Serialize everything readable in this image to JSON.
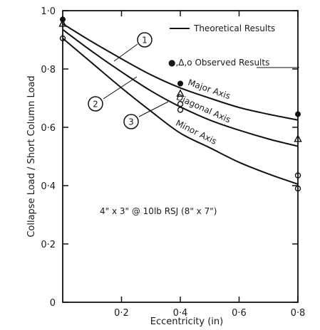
{
  "chart_data": {
    "type": "line",
    "xlabel": "Eccentricity (in)",
    "ylabel": "Collapse Load / Short Column Load",
    "xlim": [
      0,
      0.8
    ],
    "ylim": [
      0,
      1.0
    ],
    "x_ticks": [
      "0·2",
      "0·4",
      "0·6",
      "0·8"
    ],
    "y_ticks": [
      "0",
      "0·2",
      "0·4",
      "0·6",
      "0·8",
      "1·0"
    ],
    "x_tick_values": [
      0.2,
      0.4,
      0.6,
      0.8
    ],
    "y_tick_values": [
      0,
      0.2,
      0.4,
      0.6,
      0.8,
      1.0
    ],
    "grid": false,
    "legend_position": "top-right",
    "legend": {
      "line_label": "Theoretical Results",
      "markers_label": "●,Δ,o Observed Results"
    },
    "annotation": "4\" x 3\" @ 10lb RSJ (8\" x 7\")",
    "series": [
      {
        "name": "Major Axis",
        "callout": "1",
        "theoretical": {
          "x": [
            0,
            0.1,
            0.2,
            0.3,
            0.4,
            0.5,
            0.6,
            0.7,
            0.8
          ],
          "y": [
            0.955,
            0.893,
            0.835,
            0.78,
            0.735,
            0.7,
            0.668,
            0.645,
            0.625
          ]
        },
        "observed": {
          "marker": "filled-circle",
          "x": [
            0,
            0.4,
            0.8
          ],
          "y": [
            0.97,
            0.75,
            0.645
          ]
        }
      },
      {
        "name": "Diagonal Axis",
        "callout": "2",
        "theoretical": {
          "x": [
            0,
            0.1,
            0.2,
            0.3,
            0.4,
            0.5,
            0.6,
            0.7,
            0.8
          ],
          "y": [
            0.935,
            0.86,
            0.79,
            0.725,
            0.67,
            0.625,
            0.59,
            0.56,
            0.535
          ]
        },
        "observed": {
          "marker": "triangle",
          "x": [
            0,
            0.4,
            0.8
          ],
          "y": [
            0.955,
            0.715,
            0.56
          ]
        }
      },
      {
        "name": "Minor Axis",
        "callout": "3",
        "theoretical": {
          "x": [
            0,
            0.1,
            0.2,
            0.3,
            0.4,
            0.5,
            0.6,
            0.7,
            0.8
          ],
          "y": [
            0.905,
            0.82,
            0.735,
            0.655,
            0.58,
            0.53,
            0.48,
            0.44,
            0.405
          ]
        },
        "observed": {
          "marker": "open-circle",
          "x": [
            0,
            0.4,
            0.4,
            0.8,
            0.8
          ],
          "y": [
            0.905,
            0.68,
            0.66,
            0.435,
            0.39
          ]
        }
      }
    ]
  }
}
